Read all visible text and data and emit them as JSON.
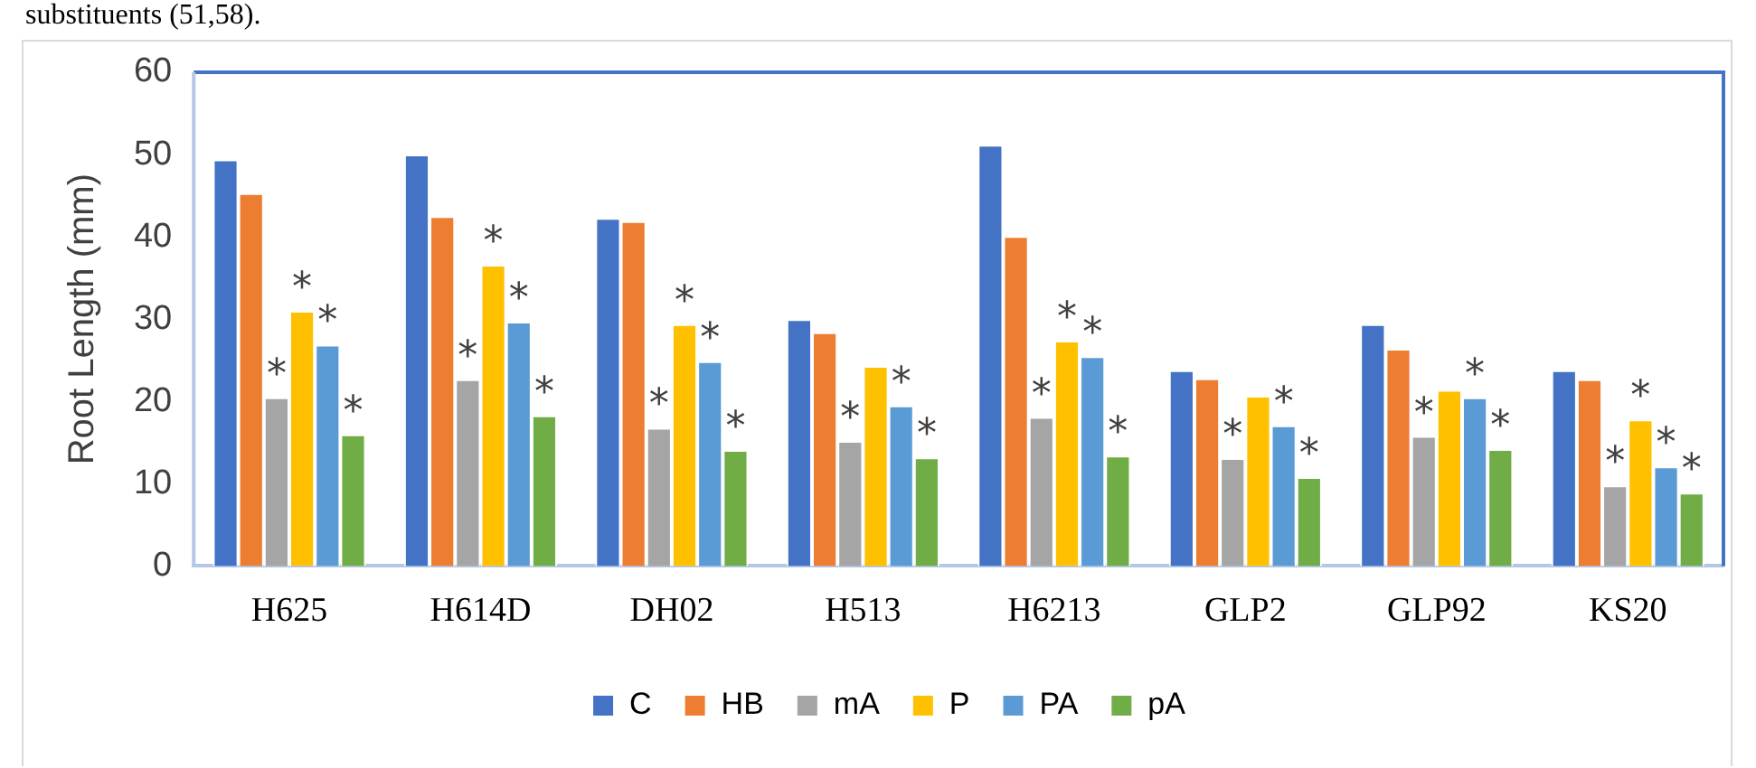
{
  "chart_data": {
    "type": "bar",
    "annotations": [
      "substituents (51,58)."
    ],
    "ylabel": "Root Length (mm)",
    "categories": [
      "H625",
      "H614D",
      "DH02",
      "H513",
      "H6213",
      "GLP2",
      "GLP92",
      "KS20"
    ],
    "series": [
      {
        "name": "C",
        "color": "#4472c4",
        "values": [
          49.4,
          50.0,
          42.3,
          30.0,
          51.2,
          23.8,
          29.4,
          23.8
        ]
      },
      {
        "name": "HB",
        "color": "#ed7d31",
        "values": [
          45.3,
          42.5,
          41.9,
          28.4,
          40.1,
          22.8,
          26.4,
          22.7
        ]
      },
      {
        "name": "mA",
        "color": "#a5a5a5",
        "values": [
          20.5,
          22.7,
          16.8,
          15.2,
          18.1,
          13.1,
          15.8,
          9.8
        ],
        "value_labels": [
          "*",
          "*",
          "*",
          "*",
          "*",
          "*",
          "*",
          "*"
        ]
      },
      {
        "name": "P",
        "color": "#ffc000",
        "values": [
          31.0,
          36.6,
          29.4,
          24.3,
          27.4,
          20.7,
          21.4,
          17.8
        ],
        "value_labels": [
          "*",
          "*",
          "*",
          null,
          "*",
          null,
          null,
          "*"
        ]
      },
      {
        "name": "PA",
        "color": "#5b9bd5",
        "values": [
          26.9,
          29.7,
          24.9,
          19.5,
          25.5,
          17.1,
          20.5,
          12.1
        ],
        "value_labels": [
          "*",
          "*",
          "*",
          "*",
          "*",
          "*",
          "*",
          "*"
        ]
      },
      {
        "name": "pA",
        "color": "#70ad47",
        "values": [
          16.0,
          18.3,
          14.1,
          13.2,
          13.4,
          10.8,
          14.2,
          8.9
        ],
        "value_labels": [
          "*",
          "*",
          "*",
          "*",
          "*",
          "*",
          "*",
          "*"
        ]
      }
    ],
    "ylim": [
      0,
      60
    ],
    "yticks": [
      0,
      10,
      20,
      30,
      40,
      50,
      60
    ],
    "grid": false,
    "legend": "bottom"
  }
}
